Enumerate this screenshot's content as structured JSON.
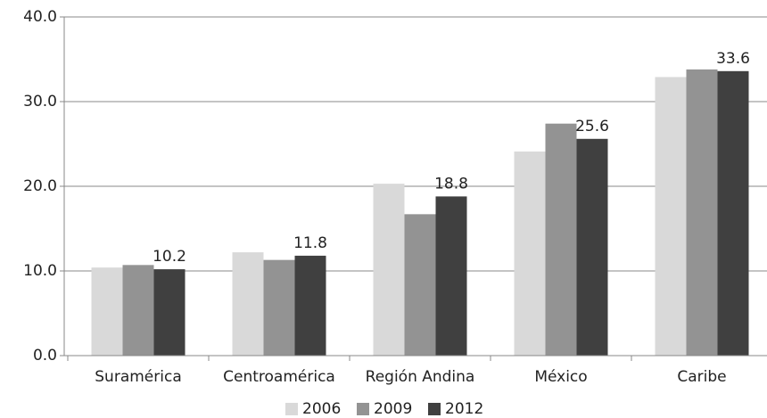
{
  "chart_data": {
    "type": "bar",
    "categories": [
      "Suramérica",
      "Centroamérica",
      "Región Andina",
      "México",
      "Caribe"
    ],
    "series": [
      {
        "name": "2006",
        "color": "#d9d9d9",
        "values": [
          10.4,
          12.2,
          20.3,
          24.1,
          32.9
        ]
      },
      {
        "name": "2009",
        "color": "#939393",
        "values": [
          10.7,
          11.3,
          16.7,
          27.4,
          33.8
        ]
      },
      {
        "name": "2012",
        "color": "#404040",
        "values": [
          10.2,
          11.8,
          18.8,
          25.6,
          33.6
        ],
        "show_values": true
      }
    ],
    "ylim": [
      0,
      40
    ],
    "yticks": [
      {
        "value": 0,
        "label": "0.0"
      },
      {
        "value": 10,
        "label": "10.0"
      },
      {
        "value": 20,
        "label": "20.0"
      },
      {
        "value": 30,
        "label": "30.0"
      },
      {
        "value": 40,
        "label": "40.0"
      }
    ],
    "grid": true,
    "legend": "bottom"
  }
}
